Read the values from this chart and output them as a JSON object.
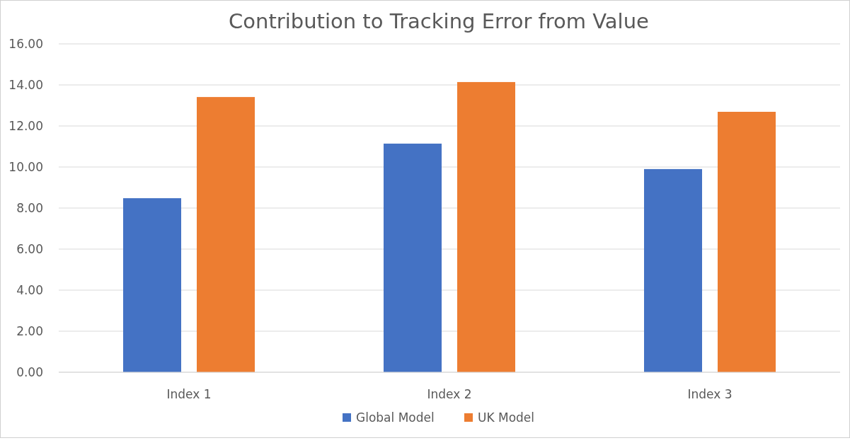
{
  "chart_data": {
    "type": "bar",
    "title": "Contribution to Tracking Error from Value",
    "categories": [
      "Index 1",
      "Index 2",
      "Index 3"
    ],
    "series": [
      {
        "name": "Global Model",
        "color": "#4472c4",
        "values": [
          8.48,
          11.14,
          9.9
        ]
      },
      {
        "name": "UK Model",
        "color": "#ed7d31",
        "values": [
          13.41,
          14.14,
          12.69
        ]
      }
    ],
    "ylim": [
      0,
      16
    ],
    "yticks": [
      {
        "value": 0,
        "label": "0.00"
      },
      {
        "value": 2,
        "label": "2.00"
      },
      {
        "value": 4,
        "label": "4.00"
      },
      {
        "value": 6,
        "label": "6.00"
      },
      {
        "value": 8,
        "label": "8.00"
      },
      {
        "value": 10,
        "label": "10.00"
      },
      {
        "value": 12,
        "label": "12.00"
      },
      {
        "value": 14,
        "label": "14.00"
      },
      {
        "value": 16,
        "label": "16.00"
      }
    ],
    "grid": "y",
    "legend": "bottom"
  }
}
